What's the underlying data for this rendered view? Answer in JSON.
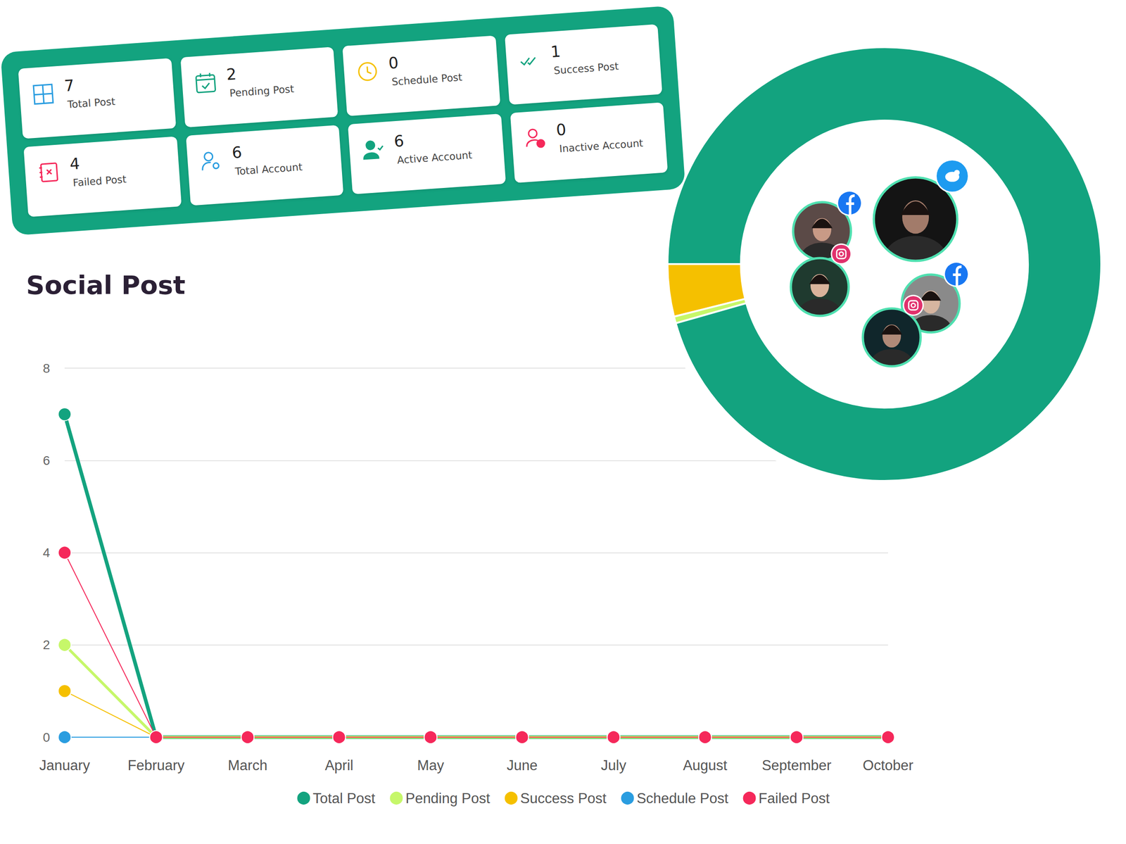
{
  "cards": [
    {
      "value": 7,
      "label": "Total Post"
    },
    {
      "value": 2,
      "label": "Pending Post"
    },
    {
      "value": 0,
      "label": "Schedule Post"
    },
    {
      "value": 1,
      "label": "Success Post"
    },
    {
      "value": 4,
      "label": "Failed Post"
    },
    {
      "value": 6,
      "label": "Total Account"
    },
    {
      "value": 6,
      "label": "Active Account"
    },
    {
      "value": 0,
      "label": "Inactive Account"
    }
  ],
  "chart_data": [
    {
      "type": "line",
      "title": "Social Post",
      "categories": [
        "January",
        "February",
        "March",
        "April",
        "May",
        "June",
        "July",
        "August",
        "September",
        "October"
      ],
      "series": [
        {
          "name": "Total Post",
          "color": "#13a37f",
          "marker": "circle",
          "values": [
            7,
            0,
            0,
            0,
            0,
            0,
            0,
            0,
            0,
            0
          ]
        },
        {
          "name": "Pending Post",
          "color": "#c6f76a",
          "marker": "circle",
          "values": [
            2,
            0,
            0,
            0,
            0,
            0,
            0,
            0,
            0,
            0
          ]
        },
        {
          "name": "Success Post",
          "color": "#f5c000",
          "marker": "circle",
          "values": [
            1,
            0,
            0,
            0,
            0,
            0,
            0,
            0,
            0,
            0
          ]
        },
        {
          "name": "Schedule Post",
          "color": "#2a9de0",
          "marker": "circle",
          "values": [
            0,
            0,
            0,
            0,
            0,
            0,
            0,
            0,
            0,
            0
          ]
        },
        {
          "name": "Failed Post",
          "color": "#f5285a",
          "marker": "circle",
          "values": [
            4,
            0,
            0,
            0,
            0,
            0,
            0,
            0,
            0,
            0
          ]
        }
      ],
      "ylim": [
        0,
        8
      ],
      "yticks": [
        0,
        2,
        4,
        6,
        8
      ],
      "grid": true,
      "legend": "bottom"
    },
    {
      "type": "pie",
      "values": [
        3.9,
        0.5,
        95.6
      ],
      "colors": [
        "#f5c000",
        "#c6f76a",
        "#13a37f"
      ]
    }
  ]
}
